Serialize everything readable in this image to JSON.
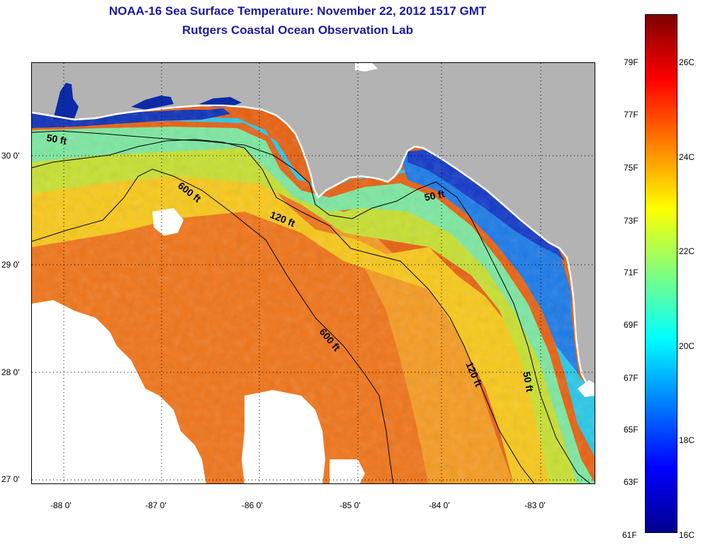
{
  "title_line1": "NOAA-16 Sea Surface Temperature:  November 22, 2012 1517 GMT",
  "title_line2": "Rutgers Coastal Ocean Observation Lab",
  "map": {
    "longitude_labels": [
      "-88 0'",
      "-87 0'",
      "-86 0'",
      "-85 0'",
      "-84 0'",
      "-83 0'"
    ],
    "latitude_labels": [
      "30 0'",
      "29 0'",
      "28 0'",
      "27 0'"
    ],
    "contour_labels": [
      "50 ft",
      "120 ft",
      "600 ft",
      "600 ft",
      "120 ft",
      "50 ft",
      "50 ft"
    ],
    "colors": {
      "land": "#b3b3b3",
      "cloud": "#ffffff",
      "contour": "#000000",
      "grid": "#000000"
    }
  },
  "colorbar": {
    "fahrenheit_labels": [
      "79F",
      "77F",
      "75F",
      "73F",
      "71F",
      "69F",
      "67F",
      "65F",
      "63F",
      "61F"
    ],
    "celsius_labels": [
      "26C",
      "24C",
      "22C",
      "20C",
      "18C",
      "16C"
    ],
    "colormap": "jet",
    "range_celsius": [
      16,
      27
    ]
  }
}
